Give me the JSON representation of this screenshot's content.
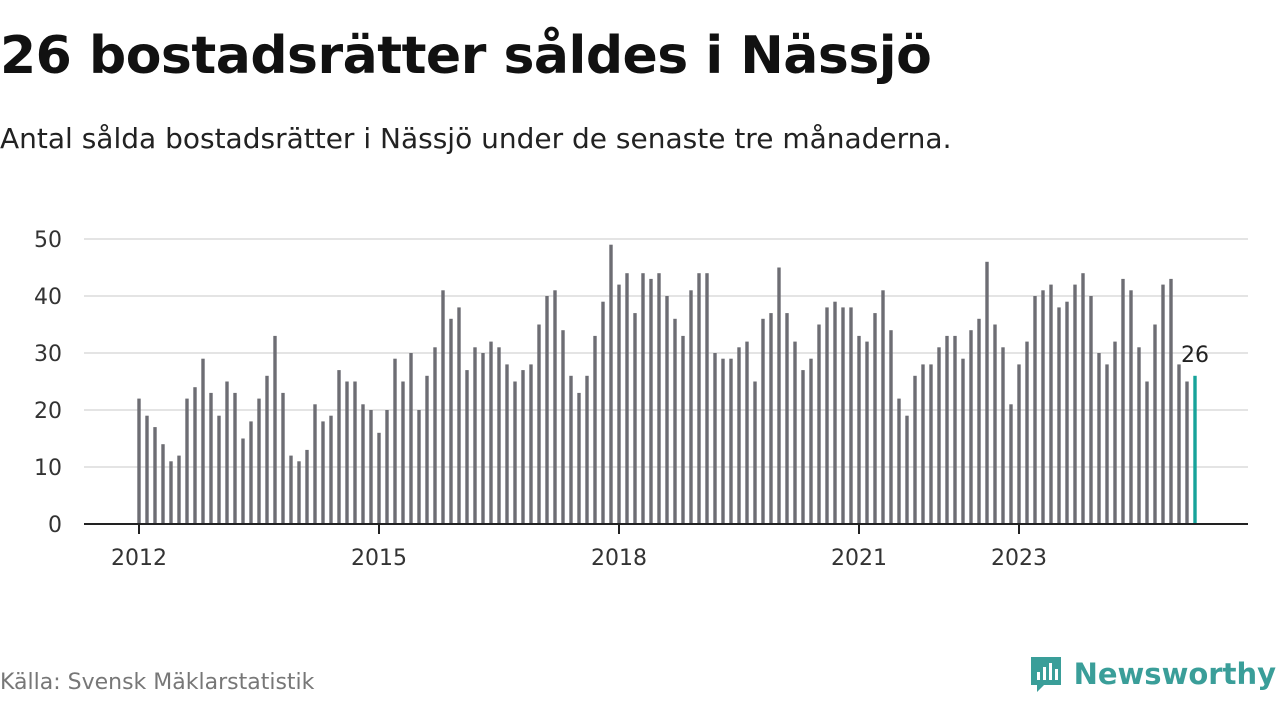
{
  "title": "26 bostadsrätter såldes i Nässjö",
  "subtitle": "Antal sålda bostadsrätter i Nässjö under de senaste tre månaderna.",
  "source": "Källa: Svensk Mäklarstatistik",
  "brand": {
    "name": "Newsworthy",
    "icon": "newsworthy-logo-icon",
    "color": "#3a9e99"
  },
  "colors": {
    "bar": "#6d6d73",
    "highlight": "#16a39a",
    "grid": "#dcdcdc",
    "axis": "#222222"
  },
  "chart_data": {
    "type": "bar",
    "title": "26 bostadsrätter såldes i Nässjö",
    "ylim": [
      0,
      50
    ],
    "y_ticks": [
      0,
      10,
      20,
      30,
      40,
      50
    ],
    "x_tick_labels": [
      "2012",
      "2015",
      "2018",
      "2021",
      "2023"
    ],
    "x_tick_positions": [
      0,
      30,
      60,
      90,
      110
    ],
    "grid": "horizontal",
    "highlight_label": "26",
    "values": [
      22,
      19,
      17,
      14,
      11,
      12,
      22,
      24,
      29,
      23,
      19,
      25,
      23,
      15,
      18,
      22,
      26,
      33,
      23,
      12,
      11,
      13,
      21,
      18,
      19,
      27,
      25,
      25,
      21,
      20,
      16,
      20,
      29,
      25,
      30,
      20,
      26,
      31,
      41,
      36,
      38,
      27,
      31,
      30,
      32,
      31,
      28,
      25,
      27,
      28,
      35,
      40,
      41,
      34,
      26,
      23,
      26,
      33,
      39,
      49,
      42,
      44,
      37,
      44,
      43,
      44,
      40,
      36,
      33,
      41,
      44,
      44,
      30,
      29,
      29,
      31,
      32,
      25,
      36,
      37,
      45,
      37,
      32,
      27,
      29,
      35,
      38,
      39,
      38,
      38,
      33,
      32,
      37,
      41,
      34,
      22,
      19,
      26,
      28,
      28,
      31,
      33,
      33,
      29,
      34,
      36,
      46,
      35,
      31,
      21,
      28,
      32,
      40,
      41,
      42,
      38,
      39,
      42,
      44,
      40,
      30,
      28,
      32,
      43,
      41,
      31,
      25,
      35,
      42,
      43,
      28,
      25,
      26
    ]
  }
}
